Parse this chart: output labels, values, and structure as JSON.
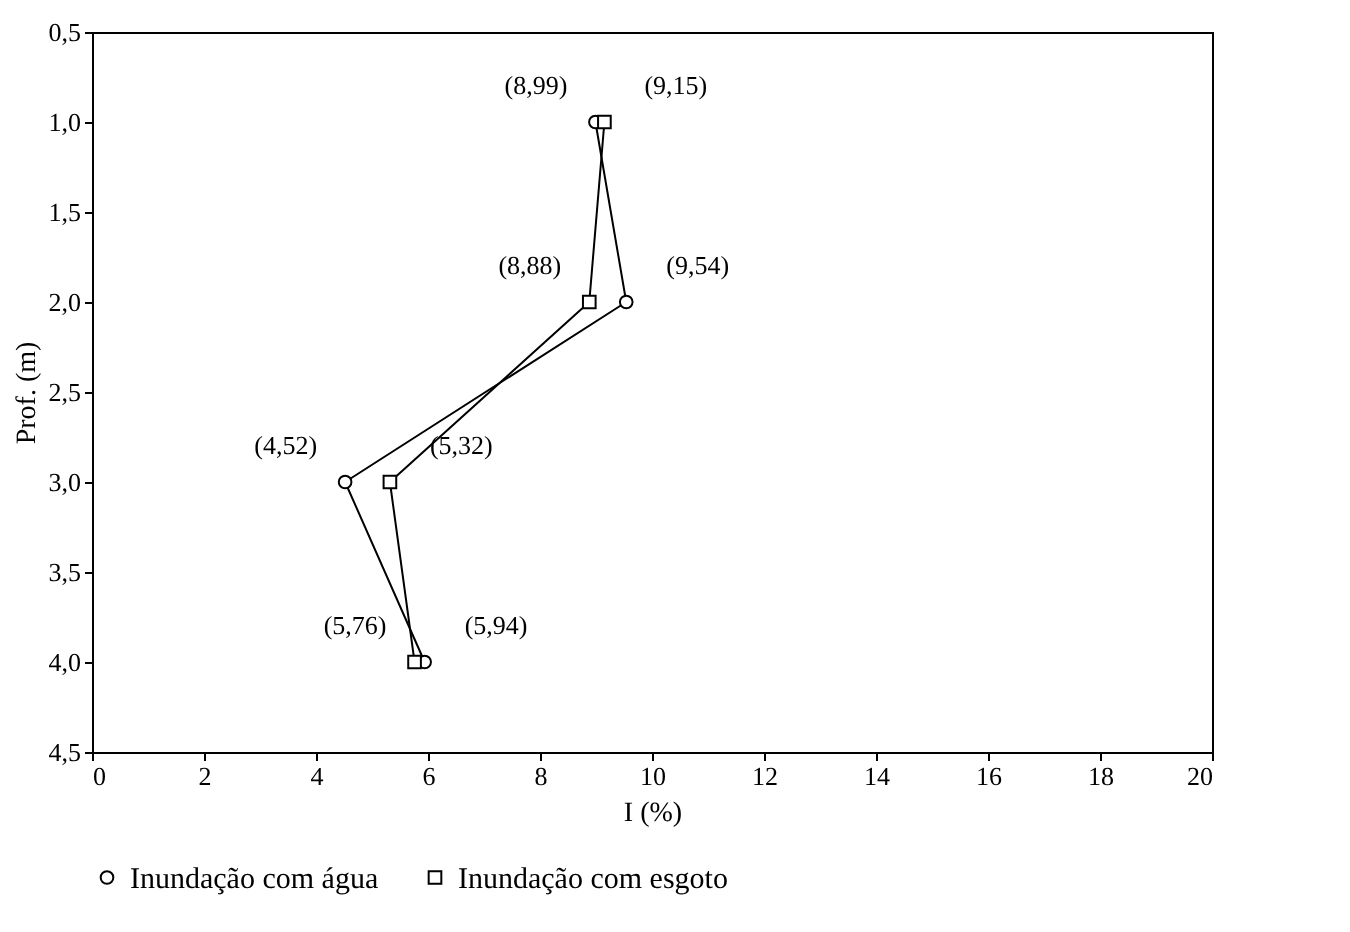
{
  "chart_data": {
    "type": "line",
    "xlabel": "I (%)",
    "ylabel": "Prof. (m)",
    "xlim": [
      0,
      20
    ],
    "xticks": [
      0,
      2,
      4,
      6,
      8,
      10,
      12,
      14,
      16,
      18,
      20
    ],
    "ylim": [
      4.5,
      0.5
    ],
    "yticks": [
      {
        "value": 0.5,
        "label": "0,5"
      },
      {
        "value": 1,
        "label": "1,0"
      },
      {
        "value": 1.5,
        "label": "1,5"
      },
      {
        "value": 2,
        "label": "2,0"
      },
      {
        "value": 2.5,
        "label": "2,5"
      },
      {
        "value": 3,
        "label": "3,0"
      },
      {
        "value": 3.5,
        "label": "3,5"
      },
      {
        "value": 4,
        "label": "4,0"
      },
      {
        "value": 4.5,
        "label": "4,5"
      }
    ],
    "legend": "bottom",
    "series": [
      {
        "name": "Inundação com água",
        "color": "#000000",
        "marker": "circle",
        "x": [
          8.99,
          9.54,
          4.52,
          5.94
        ],
        "values": [
          1,
          2,
          3,
          4
        ]
      },
      {
        "name": "Inundação com esgoto",
        "color": "#000000",
        "marker": "square",
        "x": [
          9.15,
          8.88,
          5.32,
          5.76
        ],
        "values": [
          1,
          2,
          3,
          4
        ]
      }
    ],
    "annotations": [
      {
        "text": "(8,99)",
        "x": 8.99,
        "y": 1
      },
      {
        "text": "(9,15)",
        "x": 9.15,
        "y": 1
      },
      {
        "text": "(8,88)",
        "x": 8.88,
        "y": 2
      },
      {
        "text": "(9,54)",
        "x": 9.54,
        "y": 2
      },
      {
        "text": "(4,52)",
        "x": 4.52,
        "y": 3
      },
      {
        "text": "(5,32)",
        "x": 5.32,
        "y": 3
      },
      {
        "text": "(5,76)",
        "x": 5.76,
        "y": 4
      },
      {
        "text": "(5,94)",
        "x": 5.94,
        "y": 4
      }
    ]
  }
}
